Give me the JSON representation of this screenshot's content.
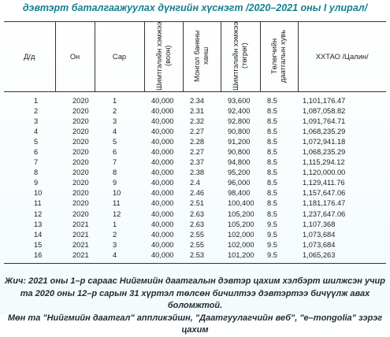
{
  "title": "дэвтэрт баталгаажуулах дүнгийн хүснэгт /2020–2021 оны I улирал/",
  "table": {
    "headers": [
      "Д/д",
      "Он",
      "Сар",
      "Шимтгэлийн хэмжээ (воон)",
      "Монгол банкны ханш",
      "Шимтгэлийн хэмжээ (төгрөг)",
      "Төлөгчийн даатгалын хувь",
      "ХХТАО /Цалин/"
    ],
    "rows": [
      [
        "1",
        "2020",
        "1",
        "40,000",
        "2.34",
        "93,600",
        "8.5",
        "1,101,176.47"
      ],
      [
        "2",
        "2020",
        "2",
        "40,000",
        "2.31",
        "92,400",
        "8.5",
        "1,087,058.82"
      ],
      [
        "3",
        "2020",
        "3",
        "40,000",
        "2.32",
        "92,800",
        "8.5",
        "1,091,764.71"
      ],
      [
        "4",
        "2020",
        "4",
        "40,000",
        "2.27",
        "90,800",
        "8.5",
        "1,068,235.29"
      ],
      [
        "5",
        "2020",
        "5",
        "40,000",
        "2.28",
        "91,200",
        "8.5",
        "1,072,941.18"
      ],
      [
        "6",
        "2020",
        "6",
        "40,000",
        "2.27",
        "90,800",
        "8.5",
        "1,068,235.29"
      ],
      [
        "7",
        "2020",
        "7",
        "40,000",
        "2.37",
        "94,800",
        "8.5",
        "1,115,294.12"
      ],
      [
        "8",
        "2020",
        "8",
        "40,000",
        "2.38",
        "95,200",
        "8.5",
        "1,120,000.00"
      ],
      [
        "9",
        "2020",
        "9",
        "40,000",
        "2.4",
        "96,000",
        "8.5",
        "1,129,411.76"
      ],
      [
        "10",
        "2020",
        "10",
        "40,000",
        "2.46",
        "98,400",
        "8.5",
        "1,157,647.06"
      ],
      [
        "11",
        "2020",
        "11",
        "40,000",
        "2.51",
        "100,400",
        "8.5",
        "1,181,176.47"
      ],
      [
        "12",
        "2020",
        "12",
        "40,000",
        "2.63",
        "105,200",
        "8.5",
        "1,237,647.06"
      ],
      [
        "13",
        "2021",
        "1",
        "40,000",
        "2.63",
        "105,200",
        "9.5",
        "1,107,368"
      ],
      [
        "14",
        "2021",
        "2",
        "40,000",
        "2.55",
        "102,000",
        "9.5",
        "1,073,684"
      ],
      [
        "15",
        "2021",
        "3",
        "40,000",
        "2.55",
        "102,000",
        "9.5",
        "1,073,684"
      ],
      [
        "16",
        "2021",
        "4",
        "40,000",
        "2.53",
        "101,200",
        "9.5",
        "1,065,263"
      ]
    ]
  },
  "note": [
    "Жич: 2021 оны 1–р сараас Нийгмийн даатгалын дэвтэр цахим хэлбэрт шилжсэн учир",
    "та 2020 оны 12–р сарын 31 хүртэл төлсөн бичилтээ дэвтэртээ бичүүлж авах боломжтой.",
    "Мөн та \"Нийгмийн даатгал\" аппликэйшн, \"Даатгуулагчийн веб\", \"е–mongolia\" зэрэг цахим"
  ]
}
